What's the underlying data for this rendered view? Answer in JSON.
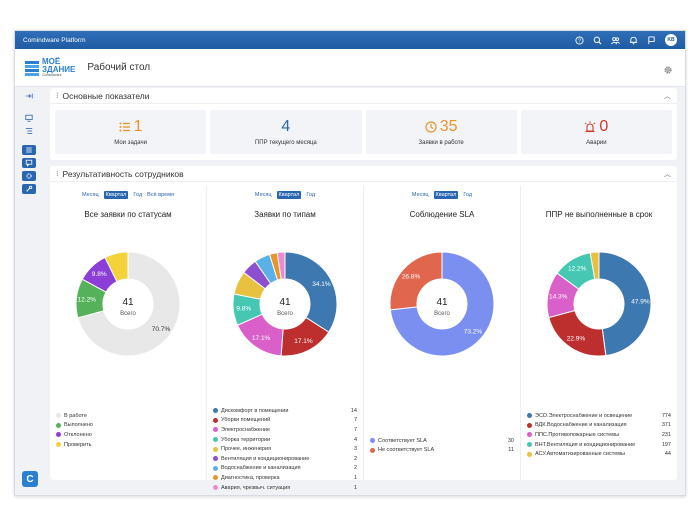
{
  "app": {
    "title": "Comindware Platform",
    "avatar_initials": "KB"
  },
  "header": {
    "logo_line1": "МОЁ",
    "logo_line2": "ЗДАНИЕ",
    "logo_sub": "Comindware",
    "page_title": "Рабочий стол"
  },
  "kpi_panel": {
    "title": "Основные показатели",
    "cards": [
      {
        "value": "1",
        "label": "Мои задачи",
        "icon": "list-icon",
        "color": "#e8962b"
      },
      {
        "value": "4",
        "label": "ППР текущего месяца",
        "icon": "",
        "color": "#2a66b0"
      },
      {
        "value": "35",
        "label": "Заявки в работе",
        "icon": "clock-icon",
        "color": "#e8962b"
      },
      {
        "value": "0",
        "label": "Аварии",
        "icon": "alarm-icon",
        "color": "#d0362b"
      }
    ]
  },
  "perf_panel": {
    "title": "Результативность сотрудников",
    "charts": [
      {
        "periods": [
          "Месяц",
          "Квартал",
          "Год",
          "Всё время"
        ],
        "active": "Квартал",
        "title": "Все заявки по статусам",
        "total": "41",
        "total_label": "Всего",
        "slices": [
          {
            "name": "В работе",
            "value": 70.7,
            "label": "70.7%",
            "color": "#e8e8e8"
          },
          {
            "name": "Выполнено",
            "value": 12.2,
            "label": "12.2%",
            "color": "#55b25a"
          },
          {
            "name": "Отклонено",
            "value": 9.8,
            "label": "9.8%",
            "color": "#8c3fd6"
          },
          {
            "name": "Проверить",
            "value": 7.3,
            "label": "",
            "color": "#f3d23a"
          }
        ],
        "legend": [
          {
            "name": "В работе",
            "count": "",
            "color": "#e8e8e8"
          },
          {
            "name": "Выполнено",
            "count": "",
            "color": "#55b25a"
          },
          {
            "name": "Отклонено",
            "count": "",
            "color": "#8c3fd6"
          },
          {
            "name": "Проверить",
            "count": "",
            "color": "#f3d23a"
          }
        ]
      },
      {
        "periods": [
          "Месяц",
          "Квартал",
          "Год"
        ],
        "active": "Квартал",
        "title": "Заявки по типам",
        "total": "41",
        "total_label": "Всего",
        "slices": [
          {
            "name": "Дискомфорт в помещении",
            "value": 34.1,
            "label": "34.1%",
            "color": "#3d78b0"
          },
          {
            "name": "Уборки помещений",
            "value": 17.1,
            "label": "17.1%",
            "color": "#bd2f2f"
          },
          {
            "name": "Электроснабжение",
            "value": 17.1,
            "label": "17.1%",
            "color": "#d95fc9"
          },
          {
            "name": "Уборка территории",
            "value": 9.8,
            "label": "9.8%",
            "color": "#46c7b4"
          },
          {
            "name": "Прочее, инженерия",
            "value": 7.3,
            "label": "",
            "color": "#e8c23e"
          },
          {
            "name": "Вентиляция и кондиционирование",
            "value": 4.9,
            "label": "",
            "color": "#8b4fd0"
          },
          {
            "name": "Водоснабжение и канализация",
            "value": 4.9,
            "label": "",
            "color": "#5bb0e8"
          },
          {
            "name": "Диагностика, проверка",
            "value": 2.4,
            "label": "",
            "color": "#e8962b"
          },
          {
            "name": "Авария, чрезвыч. ситуация",
            "value": 2.4,
            "label": "",
            "color": "#f08ad0"
          }
        ],
        "legend": [
          {
            "name": "Дискомфорт в помещении",
            "count": "14",
            "color": "#3d78b0"
          },
          {
            "name": "Уборки помещений",
            "count": "7",
            "color": "#bd2f2f"
          },
          {
            "name": "Электроснабжение",
            "count": "7",
            "color": "#d95fc9"
          },
          {
            "name": "Уборка территории",
            "count": "4",
            "color": "#46c7b4"
          },
          {
            "name": "Прочее, инженерия",
            "count": "3",
            "color": "#e8c23e"
          },
          {
            "name": "Вентиляция и кондиционирование",
            "count": "2",
            "color": "#8b4fd0"
          },
          {
            "name": "Водоснабжение и канализация",
            "count": "2",
            "color": "#5bb0e8"
          },
          {
            "name": "Диагностика, проверка",
            "count": "1",
            "color": "#e8962b"
          },
          {
            "name": "Авария, чрезвыч. ситуация",
            "count": "1",
            "color": "#f08ad0"
          }
        ]
      },
      {
        "periods": [
          "Месяц",
          "Квартал",
          "Год"
        ],
        "active": "Квартал",
        "title": "Соблюдение SLA",
        "total": "41",
        "total_label": "Всего",
        "slices": [
          {
            "name": "Соответствует SLA",
            "value": 73.2,
            "label": "73.2%",
            "color": "#7b8ff0"
          },
          {
            "name": "Не соответствует SLA",
            "value": 26.8,
            "label": "26.8%",
            "color": "#e0664e"
          }
        ],
        "legend": [
          {
            "name": "Соответствует SLA",
            "count": "30",
            "color": "#7b8ff0"
          },
          {
            "name": "Не соответствует SLA",
            "count": "11",
            "color": "#e0664e"
          }
        ]
      },
      {
        "periods": [],
        "active": "",
        "title": "ППР не выполненные в срок",
        "total": "",
        "total_label": "",
        "slices": [
          {
            "name": "ЭСО.Электроснабжение и освещение",
            "value": 47.9,
            "label": "47.9%",
            "color": "#3d78b0"
          },
          {
            "name": "ВДК.Водоснабжение и канализация",
            "value": 22.9,
            "label": "22.9%",
            "color": "#bd2f2f"
          },
          {
            "name": "ППС.Противопожарные системы",
            "value": 14.3,
            "label": "14.3%",
            "color": "#d95fc9"
          },
          {
            "name": "ВНТ.Вентиляция и кондиционирование",
            "value": 12.2,
            "label": "12.2%",
            "color": "#46c7b4"
          },
          {
            "name": "АСУ.Автоматизированные системы",
            "value": 2.7,
            "label": "",
            "color": "#e8c23e"
          }
        ],
        "legend": [
          {
            "name": "ЭСО.Электроснабжение и освещение",
            "count": "774",
            "color": "#3d78b0"
          },
          {
            "name": "ВДК.Водоснабжение и канализация",
            "count": "371",
            "color": "#bd2f2f"
          },
          {
            "name": "ППС.Противопожарные системы",
            "count": "231",
            "color": "#d95fc9"
          },
          {
            "name": "ВНТ.Вентиляция и кондиционирование",
            "count": "197",
            "color": "#46c7b4"
          },
          {
            "name": "АСУ.Автоматизированные системы",
            "count": "44",
            "color": "#e8c23e"
          }
        ]
      }
    ]
  }
}
